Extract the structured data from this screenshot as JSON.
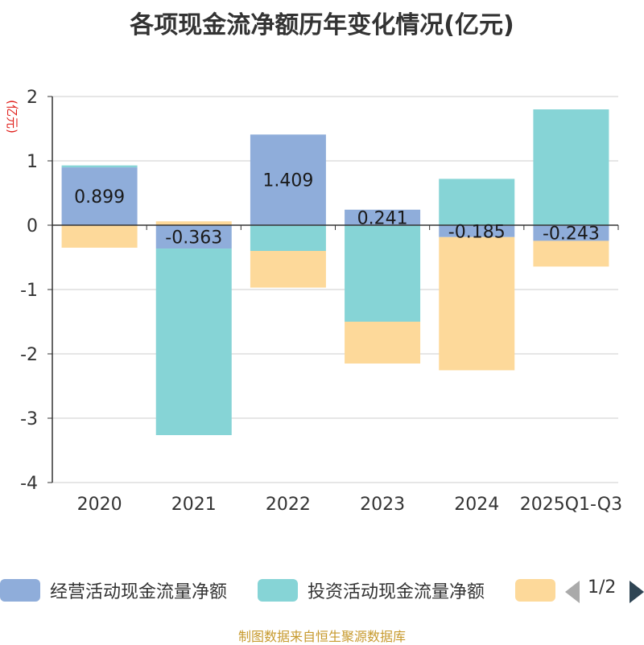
{
  "chart_data": {
    "type": "bar",
    "stacked": true,
    "title": "各项现金流净额历年变化情况(亿元)",
    "ylabel": "(亿元)",
    "xlabel": "",
    "ylim": [
      -4,
      2
    ],
    "yticks": [
      2,
      1,
      0,
      -1,
      -2,
      -3,
      -4
    ],
    "categories": [
      "2020",
      "2021",
      "2022",
      "2023",
      "2024",
      "2025Q1-Q3"
    ],
    "series": [
      {
        "name": "经营活动现金流量净额",
        "color": "#8fadda",
        "values": [
          0.899,
          -0.363,
          1.409,
          0.241,
          -0.185,
          -0.243
        ],
        "labels": [
          "0.899",
          "-0.363",
          "1.409",
          "0.241",
          "-0.185",
          "-0.243"
        ]
      },
      {
        "name": "投资活动现金流量净额",
        "color": "#86d4d6",
        "values": [
          0.03,
          -2.9,
          -0.4,
          -1.5,
          0.72,
          1.8
        ]
      },
      {
        "name": "",
        "color": "#fdd99a",
        "values": [
          -0.35,
          0.06,
          -0.57,
          -0.65,
          -2.07,
          -0.4
        ]
      }
    ],
    "legend": {
      "position": "bottom",
      "page": "1/2"
    }
  },
  "source_note": "制图数据来自恒生聚源数据库"
}
